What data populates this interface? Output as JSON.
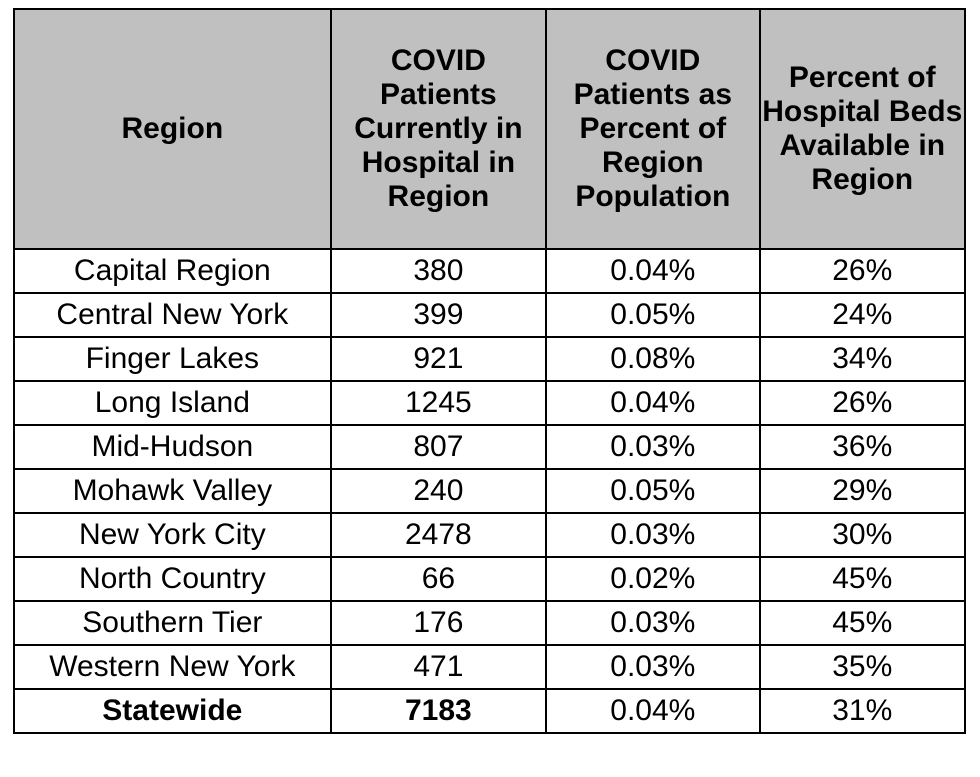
{
  "table": {
    "headers": [
      "Region",
      "COVID Patients Currently in Hospital in Region",
      "COVID Patients as Percent of Region Population",
      "Percent of Hospital Beds Available in Region"
    ],
    "rows": [
      [
        "Capital Region",
        "380",
        "0.04%",
        "26%"
      ],
      [
        "Central New York",
        "399",
        "0.05%",
        "24%"
      ],
      [
        "Finger Lakes",
        "921",
        "0.08%",
        "34%"
      ],
      [
        "Long Island",
        "1245",
        "0.04%",
        "26%"
      ],
      [
        "Mid-Hudson",
        "807",
        "0.03%",
        "36%"
      ],
      [
        "Mohawk Valley",
        "240",
        "0.05%",
        "29%"
      ],
      [
        "New York City",
        "2478",
        "0.03%",
        "30%"
      ],
      [
        "North Country",
        "66",
        "0.02%",
        "45%"
      ],
      [
        "Southern Tier",
        "176",
        "0.03%",
        "45%"
      ],
      [
        "Western New York",
        "471",
        "0.03%",
        "35%"
      ],
      [
        "Statewide",
        "7183",
        "0.04%",
        "31%"
      ]
    ]
  },
  "colors": {
    "header_background": "#c0c0c0",
    "border": "#000000",
    "text": "#000000"
  }
}
